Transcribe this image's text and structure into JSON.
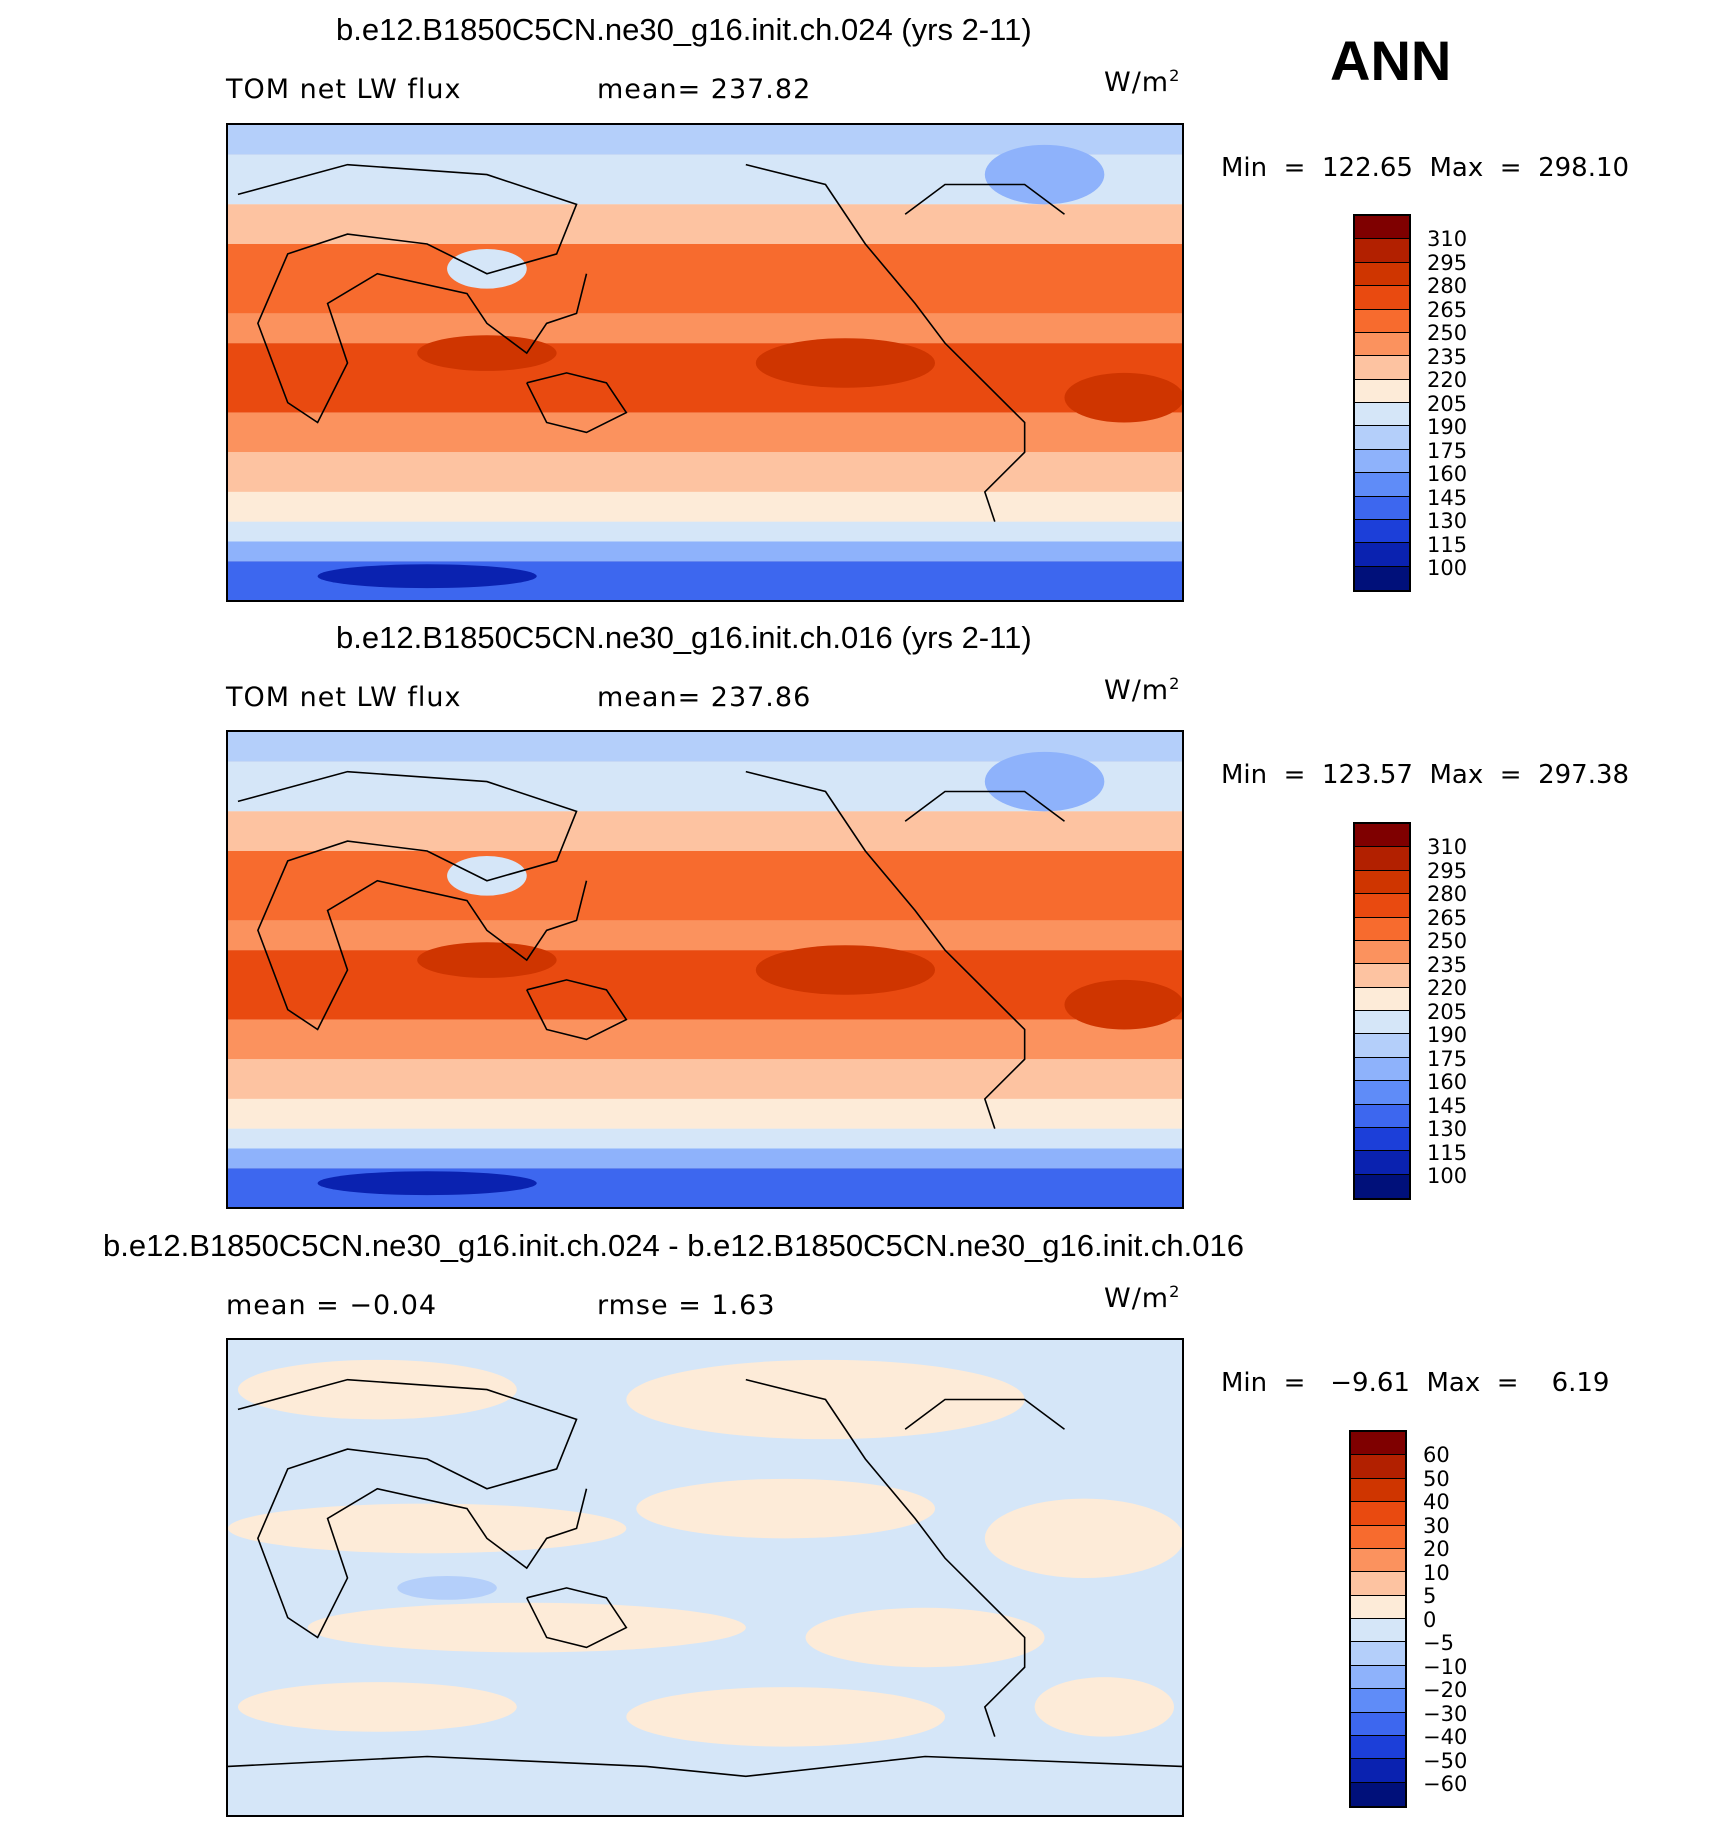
{
  "season": "ANN",
  "panels": [
    {
      "title": "b.e12.B1850C5CN.ne30_g16.init.ch.024 (yrs 2-11)",
      "left_label": "TOM net LW flux",
      "center_label": "mean= 237.82",
      "units": "W/m",
      "units_sup": "2",
      "stats": "Min  =  122.65  Max  =  298.10",
      "colorbar": {
        "labels": [
          "310",
          "295",
          "280",
          "265",
          "250",
          "235",
          "220",
          "205",
          "190",
          "175",
          "160",
          "145",
          "130",
          "115",
          "100"
        ],
        "colors": [
          "#7f0000",
          "#b22000",
          "#cf3500",
          "#e94a10",
          "#f76b2e",
          "#fb925e",
          "#fdc3a1",
          "#fdebd8",
          "#d5e6f8",
          "#b4cffa",
          "#8eb2fb",
          "#5f8cf8",
          "#3d67ef",
          "#1c3fd9",
          "#0a22b0",
          "#00107a"
        ]
      }
    },
    {
      "title": "b.e12.B1850C5CN.ne30_g16.init.ch.016 (yrs 2-11)",
      "left_label": "TOM net LW flux",
      "center_label": "mean= 237.86",
      "units": "W/m",
      "units_sup": "2",
      "stats": "Min  =  123.57  Max  =  297.38",
      "colorbar": {
        "labels": [
          "310",
          "295",
          "280",
          "265",
          "250",
          "235",
          "220",
          "205",
          "190",
          "175",
          "160",
          "145",
          "130",
          "115",
          "100"
        ],
        "colors": [
          "#7f0000",
          "#b22000",
          "#cf3500",
          "#e94a10",
          "#f76b2e",
          "#fb925e",
          "#fdc3a1",
          "#fdebd8",
          "#d5e6f8",
          "#b4cffa",
          "#8eb2fb",
          "#5f8cf8",
          "#3d67ef",
          "#1c3fd9",
          "#0a22b0",
          "#00107a"
        ]
      }
    },
    {
      "title": "b.e12.B1850C5CN.ne30_g16.init.ch.024 - b.e12.B1850C5CN.ne30_g16.init.ch.016",
      "left_label": "mean =   −0.04",
      "center_label": "rmse =    1.63",
      "units": "W/m",
      "units_sup": "2",
      "stats": "Min  =   −9.61  Max  =    6.19",
      "colorbar": {
        "labels": [
          "60",
          "50",
          "40",
          "30",
          "20",
          "10",
          "5",
          "0",
          "−5",
          "−10",
          "−20",
          "−30",
          "−40",
          "−50",
          "−60"
        ],
        "colors": [
          "#7f0000",
          "#b22000",
          "#cf3500",
          "#e94a10",
          "#f76b2e",
          "#fb925e",
          "#fdc3a1",
          "#fdebd8",
          "#d5e6f8",
          "#b4cffa",
          "#8eb2fb",
          "#5f8cf8",
          "#3d67ef",
          "#1c3fd9",
          "#0a22b0",
          "#00107a"
        ]
      }
    }
  ]
}
